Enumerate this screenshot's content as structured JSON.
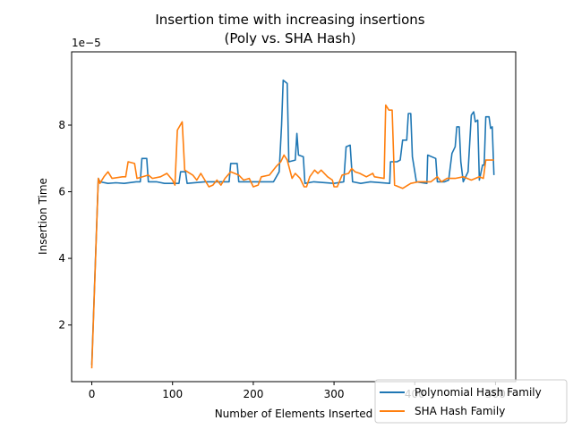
{
  "chart_data": {
    "type": "line",
    "title": "Insertion time with increasing insertions",
    "subtitle": "(Poly vs. SHA Hash)",
    "xlabel": "Number of Elements Inserted",
    "ylabel": "Insertion Time",
    "y_offset_label": "1e−5",
    "xlim": [
      -25,
      525
    ],
    "ylim": [
      0.3,
      10.2
    ],
    "y_scale_note": "values in units of 1e-5",
    "x_ticks": [
      0,
      100,
      200,
      300,
      400,
      500
    ],
    "x_tick_labels": [
      "0",
      "100",
      "200",
      "300",
      "400",
      "500"
    ],
    "y_ticks": [
      2,
      4,
      6,
      8
    ],
    "y_tick_labels": [
      "2",
      "4",
      "6",
      "8"
    ],
    "grid": false,
    "legend_position": "lower-right",
    "series": [
      {
        "name": "Polynomial Hash Family",
        "color": "#1f77b4",
        "points": [
          [
            0,
            0.8
          ],
          [
            8,
            6.4
          ],
          [
            10,
            6.3
          ],
          [
            20,
            6.25
          ],
          [
            30,
            6.27
          ],
          [
            40,
            6.25
          ],
          [
            55,
            6.3
          ],
          [
            60,
            6.3
          ],
          [
            62,
            7.0
          ],
          [
            68,
            7.0
          ],
          [
            70,
            6.3
          ],
          [
            80,
            6.3
          ],
          [
            90,
            6.25
          ],
          [
            108,
            6.25
          ],
          [
            110,
            6.6
          ],
          [
            116,
            6.6
          ],
          [
            118,
            6.25
          ],
          [
            140,
            6.3
          ],
          [
            170,
            6.3
          ],
          [
            172,
            6.85
          ],
          [
            180,
            6.85
          ],
          [
            182,
            6.3
          ],
          [
            200,
            6.3
          ],
          [
            225,
            6.3
          ],
          [
            232,
            6.6
          ],
          [
            235,
            8.0
          ],
          [
            237,
            9.35
          ],
          [
            242,
            9.25
          ],
          [
            244,
            6.9
          ],
          [
            252,
            6.95
          ],
          [
            254,
            7.75
          ],
          [
            256,
            7.1
          ],
          [
            262,
            7.05
          ],
          [
            264,
            6.25
          ],
          [
            275,
            6.3
          ],
          [
            300,
            6.25
          ],
          [
            312,
            6.3
          ],
          [
            315,
            7.35
          ],
          [
            320,
            7.4
          ],
          [
            323,
            6.3
          ],
          [
            333,
            6.25
          ],
          [
            345,
            6.3
          ],
          [
            369,
            6.25
          ],
          [
            370,
            6.9
          ],
          [
            378,
            6.9
          ],
          [
            382,
            6.95
          ],
          [
            385,
            7.55
          ],
          [
            390,
            7.55
          ],
          [
            392,
            8.35
          ],
          [
            395,
            8.35
          ],
          [
            397,
            7.05
          ],
          [
            402,
            6.3
          ],
          [
            415,
            6.25
          ],
          [
            416,
            7.1
          ],
          [
            426,
            7.0
          ],
          [
            428,
            6.3
          ],
          [
            437,
            6.3
          ],
          [
            442,
            6.35
          ],
          [
            446,
            7.15
          ],
          [
            450,
            7.35
          ],
          [
            452,
            7.95
          ],
          [
            455,
            7.95
          ],
          [
            457,
            6.9
          ],
          [
            460,
            6.3
          ],
          [
            466,
            6.6
          ],
          [
            468,
            7.45
          ],
          [
            470,
            8.3
          ],
          [
            473,
            8.4
          ],
          [
            475,
            8.1
          ],
          [
            478,
            8.15
          ],
          [
            480,
            6.35
          ],
          [
            484,
            6.8
          ],
          [
            486,
            6.8
          ],
          [
            488,
            8.25
          ],
          [
            492,
            8.25
          ],
          [
            494,
            7.9
          ],
          [
            496,
            7.95
          ],
          [
            498,
            6.5
          ]
        ]
      },
      {
        "name": "SHA Hash Family",
        "color": "#ff7f0e",
        "points": [
          [
            0,
            0.7
          ],
          [
            8,
            6.4
          ],
          [
            10,
            6.25
          ],
          [
            15,
            6.45
          ],
          [
            20,
            6.6
          ],
          [
            25,
            6.4
          ],
          [
            38,
            6.45
          ],
          [
            42,
            6.45
          ],
          [
            45,
            6.9
          ],
          [
            53,
            6.85
          ],
          [
            56,
            6.4
          ],
          [
            70,
            6.5
          ],
          [
            75,
            6.4
          ],
          [
            85,
            6.45
          ],
          [
            93,
            6.55
          ],
          [
            100,
            6.35
          ],
          [
            103,
            6.2
          ],
          [
            106,
            7.85
          ],
          [
            112,
            8.1
          ],
          [
            115,
            6.65
          ],
          [
            125,
            6.5
          ],
          [
            130,
            6.35
          ],
          [
            135,
            6.55
          ],
          [
            140,
            6.35
          ],
          [
            145,
            6.15
          ],
          [
            150,
            6.2
          ],
          [
            155,
            6.35
          ],
          [
            160,
            6.2
          ],
          [
            165,
            6.4
          ],
          [
            172,
            6.6
          ],
          [
            182,
            6.5
          ],
          [
            188,
            6.35
          ],
          [
            195,
            6.4
          ],
          [
            200,
            6.15
          ],
          [
            206,
            6.2
          ],
          [
            210,
            6.45
          ],
          [
            220,
            6.5
          ],
          [
            228,
            6.75
          ],
          [
            234,
            6.9
          ],
          [
            238,
            7.1
          ],
          [
            242,
            6.95
          ],
          [
            248,
            6.4
          ],
          [
            252,
            6.55
          ],
          [
            258,
            6.4
          ],
          [
            263,
            6.15
          ],
          [
            266,
            6.15
          ],
          [
            270,
            6.45
          ],
          [
            276,
            6.65
          ],
          [
            280,
            6.55
          ],
          [
            284,
            6.65
          ],
          [
            292,
            6.45
          ],
          [
            298,
            6.35
          ],
          [
            300,
            6.15
          ],
          [
            304,
            6.15
          ],
          [
            310,
            6.5
          ],
          [
            318,
            6.55
          ],
          [
            322,
            6.7
          ],
          [
            326,
            6.6
          ],
          [
            332,
            6.55
          ],
          [
            340,
            6.45
          ],
          [
            348,
            6.55
          ],
          [
            350,
            6.45
          ],
          [
            362,
            6.4
          ],
          [
            364,
            8.6
          ],
          [
            368,
            8.45
          ],
          [
            372,
            8.45
          ],
          [
            375,
            6.2
          ],
          [
            385,
            6.1
          ],
          [
            395,
            6.25
          ],
          [
            405,
            6.3
          ],
          [
            420,
            6.3
          ],
          [
            428,
            6.45
          ],
          [
            433,
            6.3
          ],
          [
            440,
            6.4
          ],
          [
            450,
            6.4
          ],
          [
            460,
            6.45
          ],
          [
            470,
            6.35
          ],
          [
            480,
            6.45
          ],
          [
            485,
            6.4
          ],
          [
            488,
            6.95
          ],
          [
            498,
            6.95
          ]
        ]
      }
    ]
  },
  "colors": {
    "axis": "#000000",
    "background": "#ffffff"
  }
}
